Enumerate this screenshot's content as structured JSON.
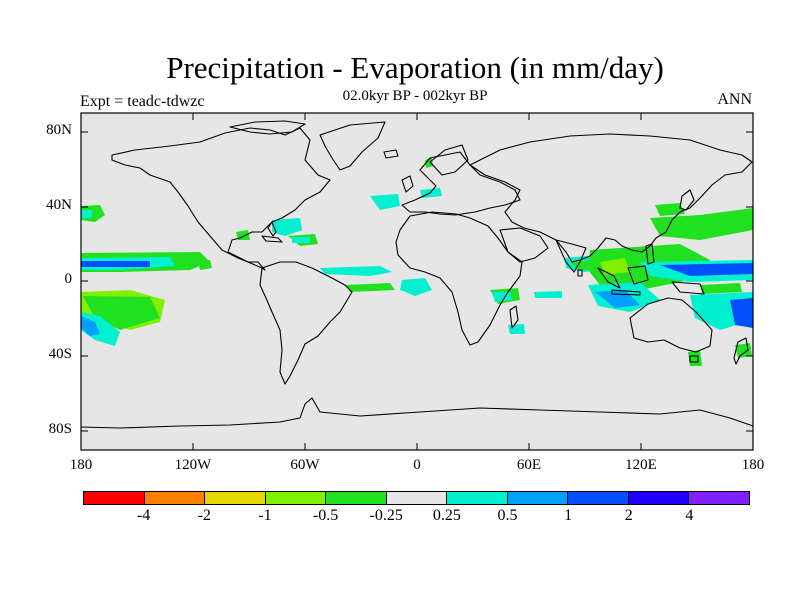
{
  "header": {
    "title": "Precipitation - Evaporation (in mm/day)",
    "subtitle": "02.0kyr BP - 002kyr BP",
    "left_label": "Expt = teadc-tdwzc",
    "right_label": "ANN"
  },
  "map": {
    "projection": "cylindrical equidistant",
    "background_color": "#e6e6e6",
    "coastline_color": "#000000",
    "lat_ticks": [
      "80N",
      "40N",
      "0",
      "40S",
      "80S"
    ],
    "lon_ticks": [
      "180",
      "120W",
      "60W",
      "0",
      "60E",
      "120E",
      "180"
    ]
  },
  "colorbar": {
    "colors": [
      "#ff0000",
      "#ff8000",
      "#e6d600",
      "#80f000",
      "#20e020",
      "#e6e6e6",
      "#00f0d0",
      "#00a0ff",
      "#0050ff",
      "#2000ff",
      "#8020ff"
    ],
    "labels": [
      "-4",
      "-2",
      "-1",
      "-0.5",
      "-0.25",
      "0.25",
      "0.5",
      "1",
      "2",
      "4"
    ]
  }
}
